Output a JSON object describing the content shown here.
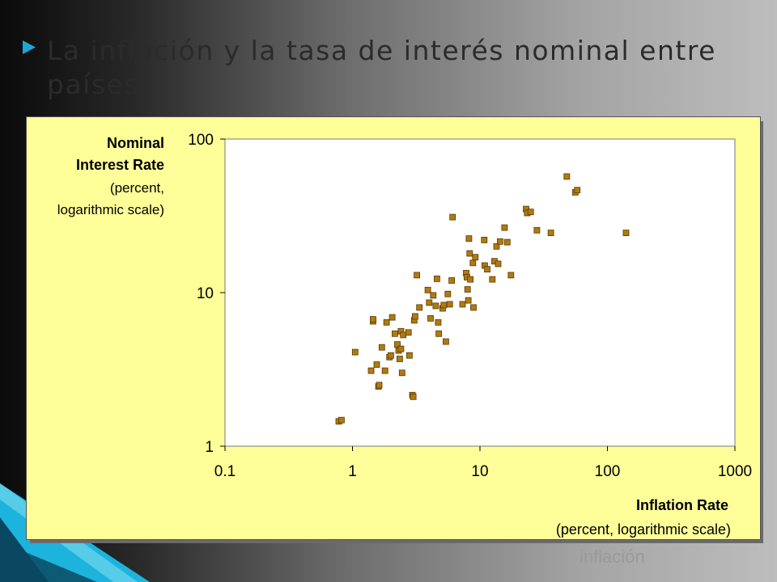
{
  "slide": {
    "title": "La inflación y la tasa de interés nominal entre países",
    "footer": "inflación"
  },
  "chart_data": {
    "type": "scatter",
    "title": "",
    "ylabel_lines": [
      "Nominal",
      "Interest Rate"
    ],
    "ylabel_sub_lines": [
      "(percent,",
      "logarithmic scale)"
    ],
    "xlabel": "Inflation Rate",
    "xlabel_sub": "(percent, logarithmic scale)",
    "xscale": "log",
    "yscale": "log",
    "xlim": [
      0.1,
      1000
    ],
    "ylim": [
      1,
      100
    ],
    "xticks": [
      0.1,
      1,
      10,
      100,
      1000
    ],
    "xtick_labels": [
      "0.1",
      "1",
      "10",
      "100",
      "1000"
    ],
    "yticks": [
      1,
      10,
      100
    ],
    "ytick_labels": [
      "1",
      "10",
      "100"
    ],
    "grid": false,
    "marker_color": "#b07a12",
    "marker_edge": "#5a3a00",
    "series": [
      {
        "points": [
          [
            0.78,
            1.45
          ],
          [
            0.82,
            1.48
          ],
          [
            1.05,
            4.1
          ],
          [
            1.4,
            3.1
          ],
          [
            1.45,
            6.5
          ],
          [
            1.45,
            6.7
          ],
          [
            1.55,
            3.4
          ],
          [
            1.6,
            2.45
          ],
          [
            1.62,
            2.5
          ],
          [
            1.7,
            4.4
          ],
          [
            1.8,
            3.1
          ],
          [
            1.85,
            6.4
          ],
          [
            1.95,
            3.8
          ],
          [
            2.0,
            3.9
          ],
          [
            2.05,
            6.9
          ],
          [
            2.15,
            5.4
          ],
          [
            2.25,
            4.6
          ],
          [
            2.3,
            4.2
          ],
          [
            2.35,
            3.7
          ],
          [
            2.4,
            4.3
          ],
          [
            2.4,
            5.6
          ],
          [
            2.45,
            3.0
          ],
          [
            2.5,
            5.3
          ],
          [
            2.75,
            5.5
          ],
          [
            2.8,
            3.9
          ],
          [
            2.95,
            2.15
          ],
          [
            3.0,
            2.1
          ],
          [
            3.05,
            6.6
          ],
          [
            3.1,
            7.0
          ],
          [
            3.2,
            13.0
          ],
          [
            3.35,
            8.0
          ],
          [
            3.9,
            10.4
          ],
          [
            4.0,
            8.6
          ],
          [
            4.1,
            6.8
          ],
          [
            4.3,
            9.6
          ],
          [
            4.5,
            8.2
          ],
          [
            4.6,
            12.3
          ],
          [
            4.7,
            6.4
          ],
          [
            4.75,
            5.4
          ],
          [
            5.1,
            7.9
          ],
          [
            5.2,
            8.3
          ],
          [
            5.4,
            4.8
          ],
          [
            5.6,
            9.8
          ],
          [
            5.8,
            8.4
          ],
          [
            6.0,
            12.0
          ],
          [
            6.1,
            31.0
          ],
          [
            7.3,
            8.4
          ],
          [
            7.8,
            13.4
          ],
          [
            7.9,
            12.6
          ],
          [
            8.0,
            10.5
          ],
          [
            8.1,
            8.9
          ],
          [
            8.2,
            22.5
          ],
          [
            8.3,
            18.0
          ],
          [
            8.4,
            12.2
          ],
          [
            8.8,
            15.6
          ],
          [
            8.9,
            8.0
          ],
          [
            9.2,
            17.0
          ],
          [
            10.8,
            22.0
          ],
          [
            10.9,
            15.0
          ],
          [
            11.4,
            14.2
          ],
          [
            12.5,
            12.2
          ],
          [
            13.0,
            16.0
          ],
          [
            13.5,
            20.0
          ],
          [
            13.9,
            15.4
          ],
          [
            14.4,
            21.5
          ],
          [
            15.6,
            26.5
          ],
          [
            16.4,
            21.3
          ],
          [
            17.5,
            13.0
          ],
          [
            23.0,
            35.0
          ],
          [
            23.5,
            33.0
          ],
          [
            25.0,
            33.5
          ],
          [
            28.0,
            25.5
          ],
          [
            36.0,
            24.5
          ],
          [
            48.0,
            57.0
          ],
          [
            56.0,
            45.0
          ],
          [
            58.0,
            46.5
          ],
          [
            140.0,
            24.5
          ]
        ]
      }
    ]
  }
}
